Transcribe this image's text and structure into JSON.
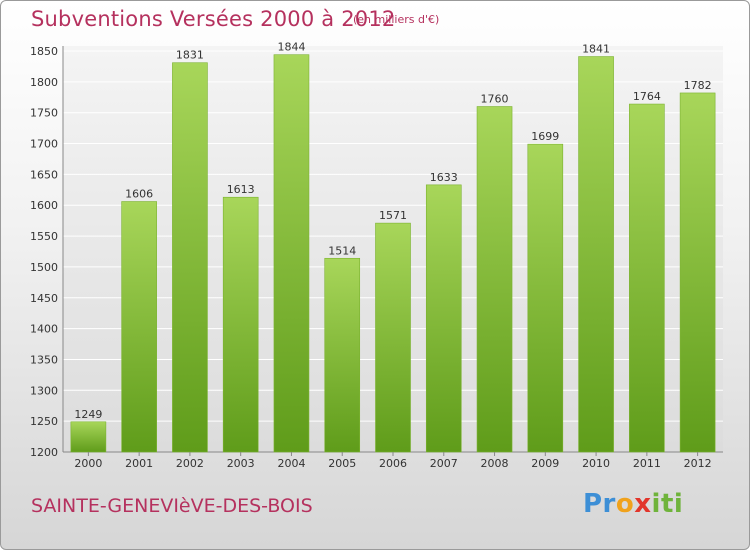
{
  "header": {
    "title": "Subventions Versées 2000 à 2012",
    "subtitle": "(en milliers d'€)"
  },
  "footer": {
    "commune": "SAINTE-GENEVIèVE-DES-BOIS",
    "logo": {
      "text": "Proxiti",
      "colors": [
        "#3d8fd6",
        "#f0a21c",
        "#e2352b",
        "#6fb33b"
      ]
    }
  },
  "colors": {
    "bar_light": "#a8d65a",
    "bar_dark": "#5f9c1a",
    "title": "#b5315e",
    "grid": "#ffffff"
  },
  "chart_data": {
    "type": "bar",
    "title": "Subventions Versées 2000 à 2012",
    "subtitle": "(en milliers d'€)",
    "categories": [
      "2000",
      "2001",
      "2002",
      "2003",
      "2004",
      "2005",
      "2006",
      "2007",
      "2008",
      "2009",
      "2010",
      "2011",
      "2012"
    ],
    "values": [
      1249,
      1606,
      1831,
      1613,
      1844,
      1514,
      1571,
      1633,
      1760,
      1699,
      1841,
      1764,
      1782
    ],
    "ylim": [
      1200,
      1850
    ],
    "yticks": [
      1200,
      1250,
      1300,
      1350,
      1400,
      1450,
      1500,
      1550,
      1600,
      1650,
      1700,
      1750,
      1800,
      1850
    ],
    "grid": true,
    "data_labels": true
  }
}
